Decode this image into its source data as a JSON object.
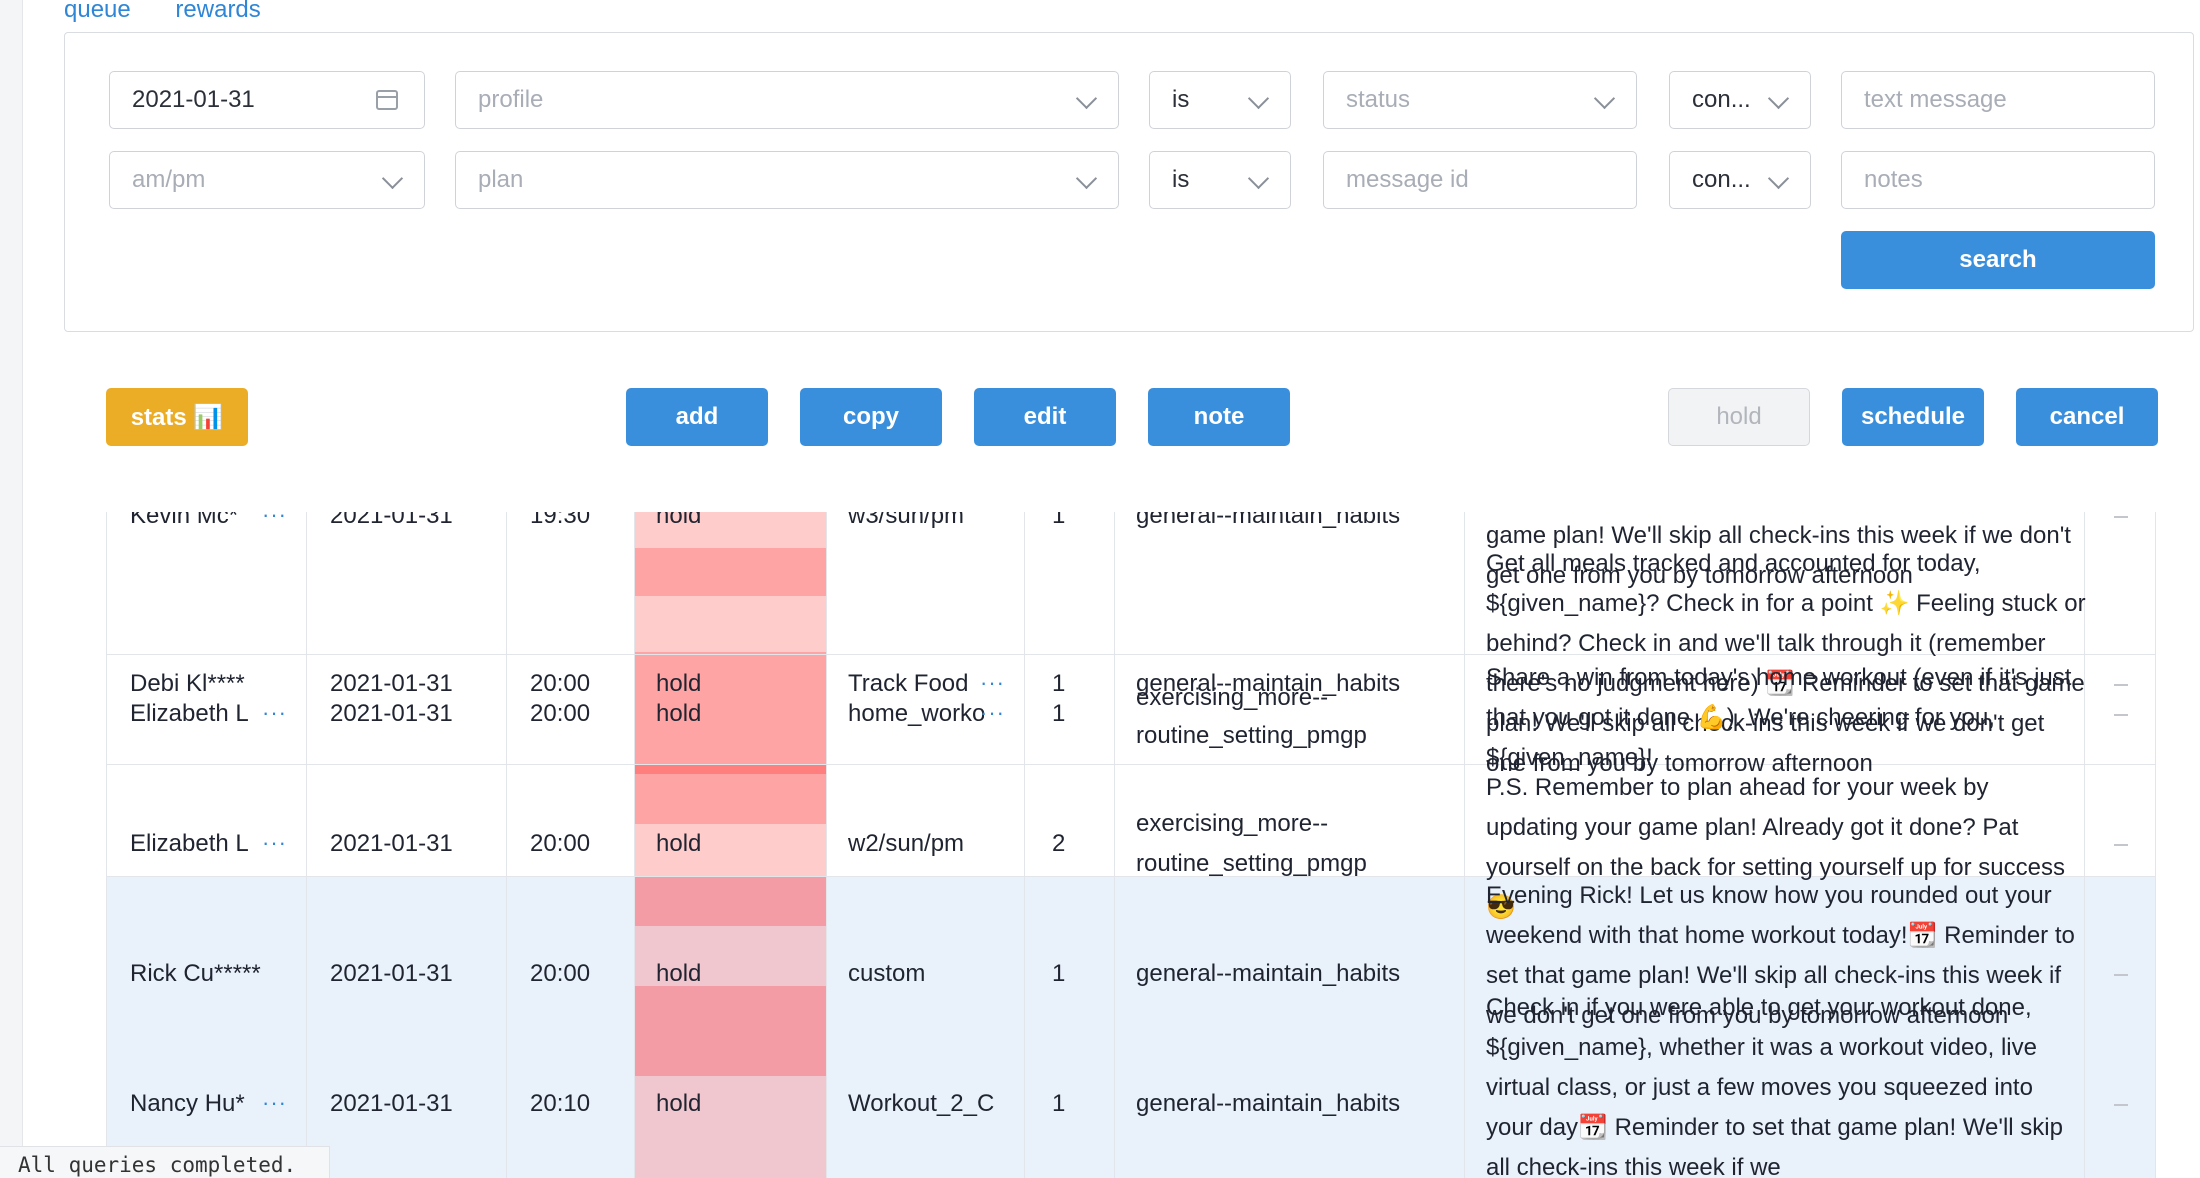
{
  "nav": {
    "queue": "queue",
    "rewards": "rewards"
  },
  "filters": {
    "date": "2021-01-31",
    "profile_placeholder": "profile",
    "op1": "is",
    "status_placeholder": "status",
    "cond1": "con...",
    "text_placeholder": "text message",
    "ampm_placeholder": "am/pm",
    "plan_placeholder": "plan",
    "op2": "is",
    "msgid_placeholder": "message id",
    "cond2": "con...",
    "notes_placeholder": "notes",
    "search_label": "search"
  },
  "toolbar": {
    "stats": "stats 📊",
    "add": "add",
    "copy": "copy",
    "edit": "edit",
    "note": "note",
    "hold": "hold",
    "schedule": "schedule",
    "cancel": "cancel"
  },
  "more_icon": "ellipsis-icon",
  "rows": [
    {
      "name": "Kevin Mc*",
      "date": "2021-01-31",
      "time": "19:30",
      "status": "hold",
      "plan": "w3/sun/pm",
      "count": "1",
      "type": "general--maintain_habits"
    },
    {
      "name": "Debi Kl****",
      "date": "2021-01-31",
      "time": "20:00",
      "status": "hold",
      "plan": "Track Food",
      "count": "1",
      "type": "general--maintain_habits"
    },
    {
      "name": "Elizabeth L",
      "date": "2021-01-31",
      "time": "20:00",
      "status": "hold",
      "plan": "home_workout",
      "count": "1",
      "type": "exercising_more--",
      "type2": "routine_setting_pmgp"
    },
    {
      "name": "Elizabeth L",
      "date": "2021-01-31",
      "time": "20:00",
      "status": "hold",
      "plan": "w2/sun/pm",
      "count": "2",
      "type": "exercising_more--",
      "type2": "routine_setting_pmgp"
    },
    {
      "name": "Rick Cu*****",
      "date": "2021-01-31",
      "time": "20:00",
      "status": "hold",
      "plan": "custom",
      "count": "1",
      "type": "general--maintain_habits"
    },
    {
      "name": "Nancy Hu*",
      "date": "2021-01-31",
      "time": "20:10",
      "status": "hold",
      "plan": "Workout_2_C",
      "count": "1",
      "type": "general--maintain_habits"
    }
  ],
  "messages": {
    "m1": "game plan! We'll skip all check-ins this week if we don't get one from you by tomorrow afternoon",
    "m2": "Get all meals tracked and accounted for today, ${given_name}? Check in for a point ✨ Feeling stuck or behind? Check in and we'll talk through it (remember there's no judgment here) 📆 Reminder to set that game plan! We'll skip all check-ins this week if we don't get one from you by tomorrow afternoon",
    "m3": "Share a win from today's home workout (even if it's just that you got it done 💪). We're cheering for you, ${given_name}!",
    "m4": "P.S. Remember to plan ahead for your week by updating your game plan! Already got it done? Pat yourself on the back for setting yourself up for success 😎",
    "m5": "Evening Rick! Let us know how you rounded out your weekend with that home workout today!📆 Reminder to set that game plan! We'll skip all check-ins this week if we don't get one from you by tomorrow afternoon",
    "m6": "Check in if you were able to get your workout done, ${given_name}, whether it was a workout video, live virtual class, or just a few moves you squeezed into your day📆 Reminder to set that game plan! We'll skip all check-ins this week if we"
  },
  "console": "All queries completed."
}
